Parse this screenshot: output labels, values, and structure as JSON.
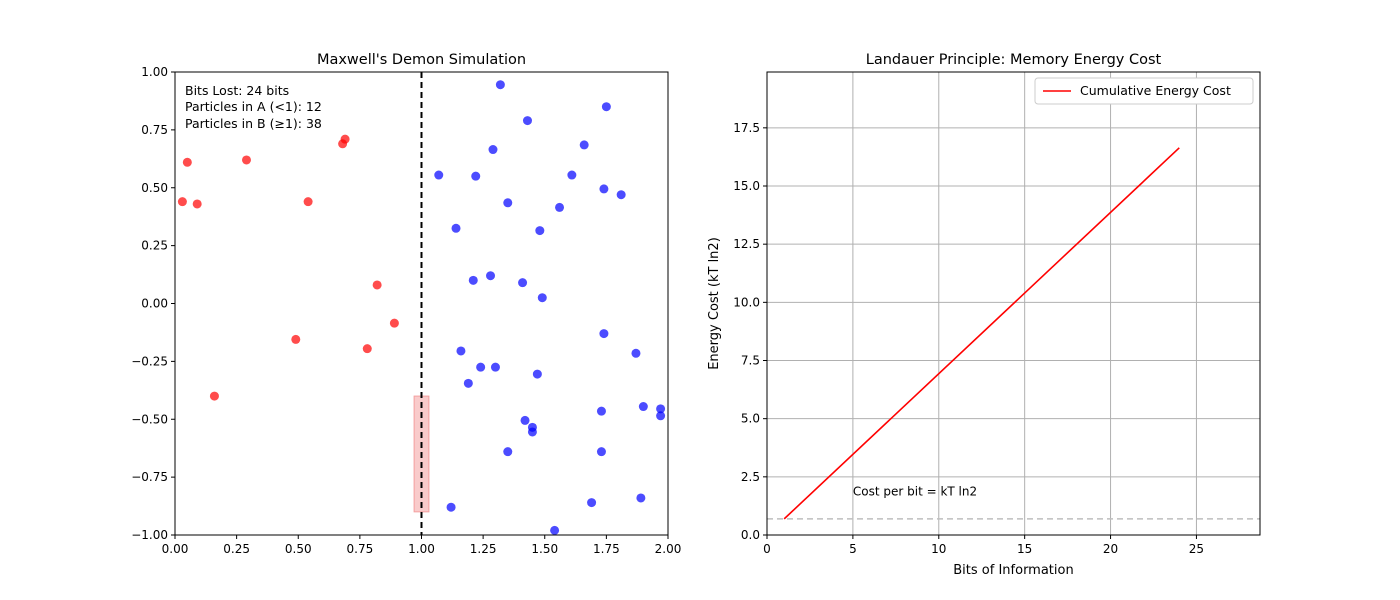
{
  "colors": {
    "particle_a": "#ff0000",
    "particle_b": "#0000ff",
    "demon_gate": "#f4a0a0",
    "partition": "#000000",
    "energy_line": "#ff0000",
    "per_bit_line": "#bfbfbf",
    "grid": "#b0b0b0"
  },
  "chart_data": [
    {
      "type": "scatter",
      "title": "Maxwell's Demon Simulation",
      "xlabel": "",
      "ylabel": "",
      "xlim": [
        0.0,
        2.0
      ],
      "ylim": [
        -1.0,
        1.0
      ],
      "grid": false,
      "x_ticks": [
        "0.00",
        "0.25",
        "0.50",
        "0.75",
        "1.00",
        "1.25",
        "1.50",
        "1.75",
        "2.00"
      ],
      "y_ticks": [
        "1.00",
        "0.75",
        "0.50",
        "0.25",
        "0.00",
        "−0.25",
        "−0.50",
        "−0.75",
        "−1.00"
      ],
      "stats": [
        "Bits Lost: 24 bits",
        "Particles in A (<1): 12",
        "Particles in B (≥1): 38"
      ],
      "partition_x": 1.0,
      "gate": {
        "x0": 0.97,
        "x1": 1.03,
        "y0": -0.9,
        "y1": -0.4
      },
      "series": [
        {
          "color_key": "particle_a",
          "points": [
            [
              0.03,
              0.44
            ],
            [
              0.05,
              0.61
            ],
            [
              0.09,
              0.43
            ],
            [
              0.16,
              -0.4
            ],
            [
              0.29,
              0.62
            ],
            [
              0.49,
              -0.155
            ],
            [
              0.54,
              0.44
            ],
            [
              0.68,
              0.69
            ],
            [
              0.69,
              0.71
            ],
            [
              0.78,
              -0.195
            ],
            [
              0.82,
              0.08
            ],
            [
              0.89,
              -0.085
            ]
          ]
        },
        {
          "color_key": "particle_b",
          "points": [
            [
              1.07,
              0.555
            ],
            [
              1.12,
              -0.88
            ],
            [
              1.14,
              0.325
            ],
            [
              1.16,
              -0.205
            ],
            [
              1.19,
              -0.345
            ],
            [
              1.21,
              0.1
            ],
            [
              1.22,
              0.55
            ],
            [
              1.24,
              -0.275
            ],
            [
              1.28,
              0.12
            ],
            [
              1.29,
              0.665
            ],
            [
              1.3,
              -0.275
            ],
            [
              1.32,
              0.945
            ],
            [
              1.35,
              -0.64
            ],
            [
              1.35,
              0.435
            ],
            [
              1.41,
              0.09
            ],
            [
              1.42,
              -0.505
            ],
            [
              1.43,
              0.79
            ],
            [
              1.45,
              -0.535
            ],
            [
              1.45,
              -0.555
            ],
            [
              1.47,
              -0.305
            ],
            [
              1.48,
              0.315
            ],
            [
              1.49,
              0.025
            ],
            [
              1.54,
              -0.98
            ],
            [
              1.56,
              0.415
            ],
            [
              1.61,
              0.555
            ],
            [
              1.66,
              0.685
            ],
            [
              1.69,
              -0.86
            ],
            [
              1.73,
              -0.64
            ],
            [
              1.73,
              -0.465
            ],
            [
              1.74,
              -0.13
            ],
            [
              1.74,
              0.495
            ],
            [
              1.75,
              0.85
            ],
            [
              1.81,
              0.47
            ],
            [
              1.87,
              -0.215
            ],
            [
              1.89,
              -0.84
            ],
            [
              1.9,
              -0.445
            ],
            [
              1.97,
              -0.455
            ],
            [
              1.97,
              -0.485
            ]
          ]
        }
      ]
    },
    {
      "type": "line",
      "title": "Landauer Principle: Memory Energy Cost",
      "xlabel": "Bits of Information",
      "ylabel": "Energy Cost (kT ln2)",
      "xlim": [
        0,
        28.7
      ],
      "ylim": [
        0,
        19.9
      ],
      "grid": true,
      "x_tick_values": [
        0,
        5,
        10,
        15,
        20,
        25
      ],
      "y_tick_values": [
        0.0,
        2.5,
        5.0,
        7.5,
        10.0,
        12.5,
        15.0,
        17.5
      ],
      "x_ticks": [
        "0",
        "5",
        "10",
        "15",
        "20",
        "25"
      ],
      "y_ticks": [
        "0.0",
        "2.5",
        "5.0",
        "7.5",
        "10.0",
        "12.5",
        "15.0",
        "17.5"
      ],
      "legend": "top-right",
      "series": [
        {
          "name": "Cumulative Energy Cost",
          "color_key": "energy_line",
          "x": [
            1,
            24
          ],
          "y": [
            0.693,
            16.64
          ]
        }
      ],
      "hline": {
        "y": 0.693,
        "color_key": "per_bit_line",
        "style": "dashed"
      },
      "annotation": {
        "text": "Cost per bit = kT ln2",
        "x": 5,
        "y": 1.7
      }
    }
  ]
}
